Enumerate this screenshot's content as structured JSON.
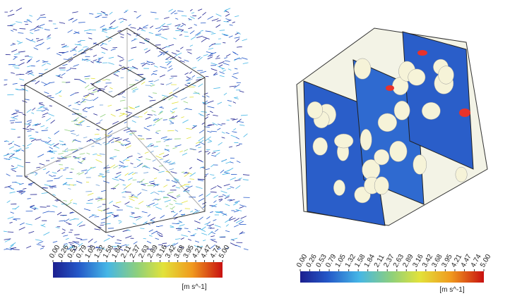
{
  "colorbars": [
    {
      "range": [
        0,
        5
      ],
      "unit": "[m s^-1]",
      "ticks": [
        {
          "value": 0,
          "label": "0.00"
        },
        {
          "value": 0.26,
          "label": "0.26"
        },
        {
          "value": 0.53,
          "label": "0.53"
        },
        {
          "value": 0.79,
          "label": "0.79"
        },
        {
          "value": 1.05,
          "label": "1.05"
        },
        {
          "value": 1.32,
          "label": "1.32"
        },
        {
          "value": 1.58,
          "label": "1.58"
        },
        {
          "value": 1.84,
          "label": "1.84"
        },
        {
          "value": 2.11,
          "label": "2.11"
        },
        {
          "value": 2.37,
          "label": "2.37"
        },
        {
          "value": 2.63,
          "label": "2.63"
        },
        {
          "value": 2.89,
          "label": "2.89"
        },
        {
          "value": 3.16,
          "label": "3.16"
        },
        {
          "value": 3.42,
          "label": "3.42"
        },
        {
          "value": 3.68,
          "label": "3.68"
        },
        {
          "value": 3.95,
          "label": "3.95"
        },
        {
          "value": 4.21,
          "label": "4.21"
        },
        {
          "value": 4.47,
          "label": "4.47"
        },
        {
          "value": 4.74,
          "label": "4.74"
        },
        {
          "value": 5,
          "label": "5.00"
        }
      ]
    },
    {
      "range": [
        0,
        5
      ],
      "unit": "[m s^-1]",
      "ticks": [
        {
          "value": 0,
          "label": "0.00"
        },
        {
          "value": 0.26,
          "label": "0.26"
        },
        {
          "value": 0.53,
          "label": "0.53"
        },
        {
          "value": 0.79,
          "label": "0.79"
        },
        {
          "value": 1.05,
          "label": "1.05"
        },
        {
          "value": 1.32,
          "label": "1.32"
        },
        {
          "value": 1.58,
          "label": "1.58"
        },
        {
          "value": 1.84,
          "label": "1.84"
        },
        {
          "value": 2.11,
          "label": "2.11"
        },
        {
          "value": 2.37,
          "label": "2.37"
        },
        {
          "value": 2.63,
          "label": "2.63"
        },
        {
          "value": 2.89,
          "label": "2.89"
        },
        {
          "value": 3.16,
          "label": "3.16"
        },
        {
          "value": 3.42,
          "label": "3.42"
        },
        {
          "value": 3.68,
          "label": "3.68"
        },
        {
          "value": 3.95,
          "label": "3.95"
        },
        {
          "value": 4.21,
          "label": "4.21"
        },
        {
          "value": 4.47,
          "label": "4.47"
        },
        {
          "value": 4.74,
          "label": "4.74"
        },
        {
          "value": 5,
          "label": "5.00"
        }
      ]
    }
  ]
}
